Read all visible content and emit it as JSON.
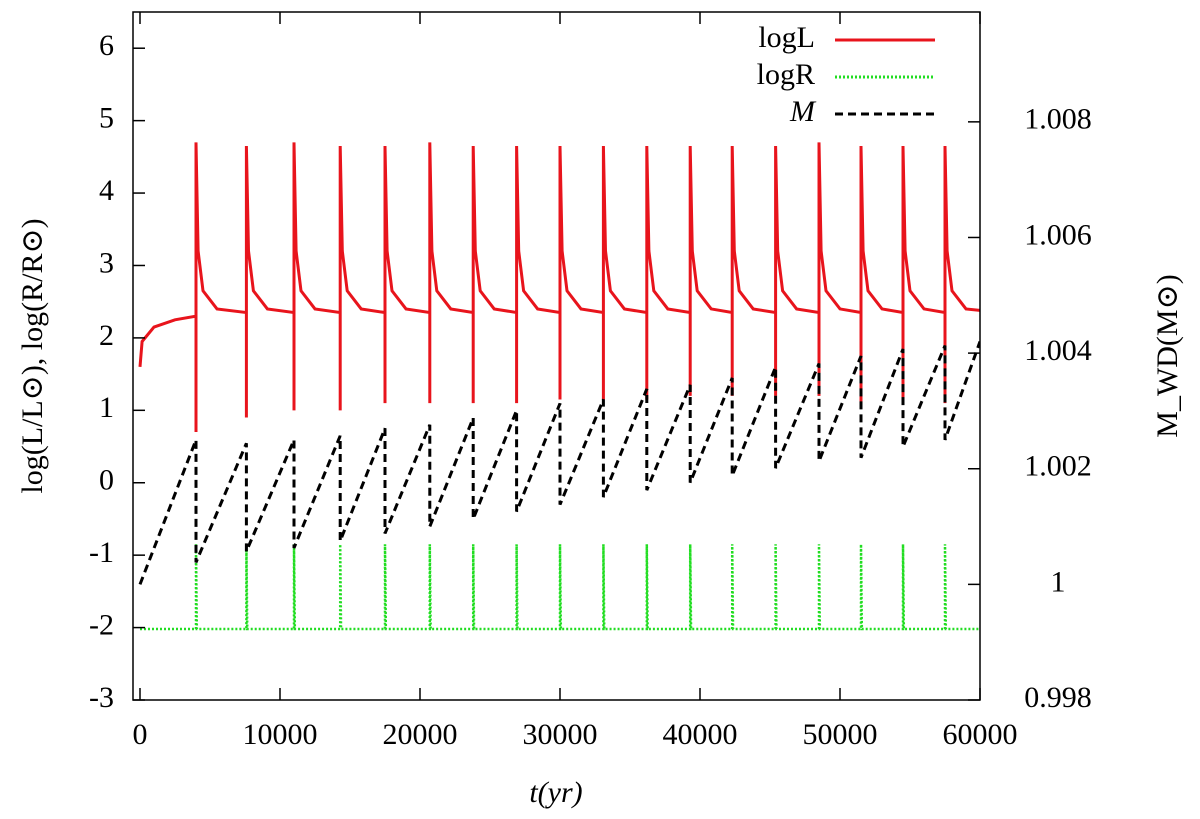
{
  "chart_data": {
    "type": "line",
    "xlabel": "t(yr)",
    "ylabel": "log(L/L⊙), log(R/R⊙)",
    "y2label": "M_WD(M⊙)",
    "xlim": [
      -500,
      60000
    ],
    "ylim": [
      -3,
      6.5
    ],
    "y2lim": [
      0.998,
      1.0099
    ],
    "xticks": [
      0,
      10000,
      20000,
      30000,
      40000,
      50000,
      60000
    ],
    "yticks": [
      -3,
      -2,
      -1,
      0,
      1,
      2,
      3,
      4,
      5,
      6
    ],
    "y2ticks": [
      0.998,
      1,
      1.002,
      1.004,
      1.006,
      1.008
    ],
    "legend": "top right",
    "series": [
      {
        "name": "logL",
        "color": "#e8141c",
        "style": "solid",
        "axis": "y",
        "x": [
          0,
          150,
          1000,
          2500,
          4000,
          4000,
          4000,
          4150,
          4500,
          5500,
          7600,
          7600,
          7600,
          7750,
          8100,
          9100,
          11000,
          11000,
          11000,
          11150,
          11500,
          12500,
          14300,
          14300,
          14300,
          14450,
          14800,
          15800,
          17500,
          17500,
          17500,
          17650,
          18000,
          19000,
          20700,
          20700,
          20700,
          20850,
          21200,
          22200,
          23800,
          23800,
          23800,
          23950,
          24300,
          25300,
          26900,
          26900,
          26900,
          27050,
          27400,
          28400,
          30000,
          30000,
          30000,
          30150,
          30500,
          31500,
          33100,
          33100,
          33100,
          33250,
          33600,
          34600,
          36200,
          36200,
          36200,
          36350,
          36700,
          37700,
          39300,
          39300,
          39300,
          39450,
          39800,
          40800,
          42300,
          42300,
          42300,
          42450,
          42800,
          43800,
          45400,
          45400,
          45400,
          45550,
          45900,
          46900,
          48500,
          48500,
          48500,
          48650,
          49000,
          50000,
          51500,
          51500,
          51500,
          51650,
          52000,
          53000,
          54500,
          54500,
          54500,
          54650,
          55000,
          56000,
          57500,
          57500,
          57500,
          57650,
          58000,
          59000,
          60000
        ],
        "values": [
          1.6,
          1.95,
          2.15,
          2.25,
          2.3,
          0.7,
          4.7,
          3.2,
          2.65,
          2.4,
          2.35,
          0.9,
          4.65,
          3.2,
          2.65,
          2.4,
          2.35,
          1.0,
          4.7,
          3.2,
          2.65,
          2.4,
          2.35,
          1.0,
          4.65,
          3.2,
          2.65,
          2.4,
          2.35,
          1.1,
          4.65,
          3.2,
          2.65,
          2.4,
          2.35,
          1.1,
          4.7,
          3.2,
          2.65,
          2.4,
          2.35,
          1.1,
          4.65,
          3.2,
          2.65,
          2.4,
          2.35,
          1.1,
          4.65,
          3.2,
          2.65,
          2.4,
          2.35,
          1.15,
          4.65,
          3.2,
          2.65,
          2.4,
          2.35,
          1.15,
          4.65,
          3.2,
          2.65,
          2.4,
          2.35,
          1.15,
          4.65,
          3.2,
          2.65,
          2.4,
          2.35,
          1.2,
          4.65,
          3.2,
          2.65,
          2.4,
          2.35,
          1.2,
          4.65,
          3.2,
          2.65,
          2.4,
          2.35,
          1.2,
          4.65,
          3.2,
          2.65,
          2.4,
          2.35,
          1.2,
          4.7,
          3.2,
          2.65,
          2.4,
          2.35,
          1.1,
          4.65,
          3.2,
          2.65,
          2.4,
          2.35,
          1.1,
          4.65,
          3.2,
          2.65,
          2.4,
          2.35,
          1.1,
          4.65,
          3.2,
          2.65,
          2.4,
          2.38
        ]
      },
      {
        "name": "logR",
        "color": "#22dd22",
        "style": "dotted",
        "axis": "y",
        "x": [
          0,
          4000,
          4000,
          4060,
          7600,
          7600,
          7660,
          11000,
          11000,
          11060,
          14300,
          14300,
          14360,
          17500,
          17500,
          17560,
          20700,
          20700,
          20760,
          23800,
          23800,
          23860,
          26900,
          26900,
          26960,
          30000,
          30000,
          30060,
          33100,
          33100,
          33160,
          36200,
          36200,
          36260,
          39300,
          39300,
          39360,
          42300,
          42300,
          42360,
          45400,
          45400,
          45460,
          48500,
          48500,
          48560,
          51500,
          51500,
          51560,
          54500,
          54500,
          54560,
          57500,
          57500,
          57560,
          60000
        ],
        "values": [
          -2.02,
          -2.02,
          -0.85,
          -2.02,
          -2.02,
          -0.85,
          -2.02,
          -2.02,
          -0.85,
          -2.02,
          -2.02,
          -0.85,
          -2.02,
          -2.02,
          -0.85,
          -2.02,
          -2.02,
          -0.85,
          -2.02,
          -2.02,
          -0.85,
          -2.02,
          -2.02,
          -0.85,
          -2.02,
          -2.02,
          -0.85,
          -2.02,
          -2.02,
          -0.85,
          -2.02,
          -2.02,
          -0.85,
          -2.02,
          -2.02,
          -0.85,
          -2.02,
          -2.02,
          -0.85,
          -2.02,
          -2.02,
          -0.85,
          -2.02,
          -2.02,
          -0.85,
          -2.02,
          -2.02,
          -0.85,
          -2.02,
          -2.02,
          -0.85,
          -2.02,
          -2.02,
          -0.85,
          -2.02,
          -2.02
        ]
      },
      {
        "name": "M",
        "color": "#000000",
        "style": "dashed",
        "axis": "y2",
        "x": [
          0,
          4000,
          4000,
          7600,
          7600,
          11000,
          11000,
          14300,
          14300,
          17500,
          17500,
          20700,
          20700,
          23800,
          23800,
          26900,
          26900,
          30000,
          30000,
          33100,
          33100,
          36200,
          36200,
          39300,
          39300,
          42300,
          42300,
          45400,
          45400,
          48500,
          48500,
          51500,
          51500,
          54500,
          54500,
          57500,
          57500,
          60000
        ],
        "values": [
          1.0,
          1.0025,
          1.00038,
          1.00244,
          1.00057,
          1.0025,
          1.00063,
          1.00257,
          1.00075,
          1.0027,
          1.00088,
          1.00276,
          1.001,
          1.00288,
          1.00113,
          1.00301,
          1.00126,
          1.00313,
          1.00138,
          1.0032,
          1.00151,
          1.00338,
          1.00163,
          1.00345,
          1.00176,
          1.00357,
          1.00188,
          1.00376,
          1.00201,
          1.00382,
          1.00213,
          1.00395,
          1.00219,
          1.00407,
          1.00238,
          1.00413,
          1.0025,
          1.0042
        ]
      }
    ]
  }
}
